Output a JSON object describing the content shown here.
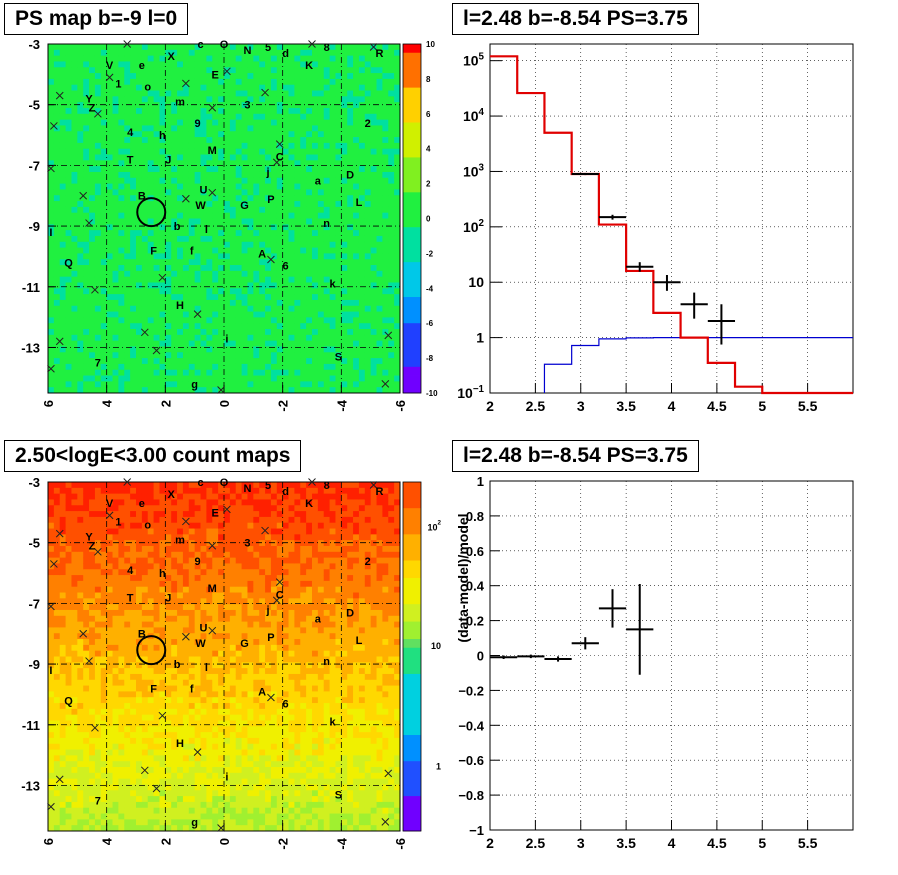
{
  "titles": {
    "ps_map": "PS map b=-9 l=0",
    "spectrum": "l=2.48 b=-8.54 PS=3.75",
    "count_map": "2.50<logE<3.00 count maps",
    "residual": "l=2.48 b=-8.54 PS=3.75"
  },
  "colors": {
    "model_red": "#e00000",
    "bg_blue": "#0000d0",
    "data_black": "#000000"
  },
  "chart_data": [
    {
      "id": "ps_map",
      "type": "heatmap",
      "title": "PS map b=-9 l=0",
      "xlim": [
        6,
        -6
      ],
      "ylim": [
        -14.5,
        -3
      ],
      "x_ticks": [
        "6",
        "4",
        "2",
        "0",
        "-2",
        "-4",
        "-6"
      ],
      "y_ticks": [
        "-3",
        "-5",
        "-7",
        "-9",
        "-11",
        "-13"
      ],
      "colorbar": {
        "min": -10,
        "max": 10,
        "ticks": [
          "10",
          "8",
          "6",
          "4",
          "2",
          "0",
          "-2",
          "-4",
          "-6",
          "-8",
          "-10"
        ]
      },
      "grid": true,
      "selected_source": {
        "l": 2.48,
        "b": -8.54
      }
    },
    {
      "id": "spectrum",
      "type": "line",
      "title": "l=2.48 b=-8.54 PS=3.75",
      "x_scale": "linear",
      "y_scale": "log",
      "xlim": [
        2,
        6
      ],
      "ylim": [
        0.1,
        200000
      ],
      "x_ticks": [
        "2",
        "2.5",
        "3",
        "3.5",
        "4",
        "4.5",
        "5",
        "5.5"
      ],
      "y_ticks": [
        {
          "base": "10",
          "exp": "5"
        },
        {
          "base": "10",
          "exp": "4"
        },
        {
          "base": "10",
          "exp": "3"
        },
        {
          "base": "10",
          "exp": "2"
        },
        {
          "base": "10",
          "exp": ""
        },
        {
          "base": "1",
          "exp": ""
        },
        {
          "base": "10",
          "exp": "−1"
        }
      ],
      "grid": true,
      "series": [
        {
          "bin_edges": [
            2.0,
            2.3,
            2.6,
            2.9,
            3.2,
            3.5,
            3.8,
            4.1,
            4.4,
            4.7,
            5.0,
            6.0
          ],
          "values": [
            120000,
            26000,
            5000,
            900,
            110,
            16,
            2.8,
            1.0,
            0.35,
            0.13,
            0.1
          ]
        },
        {
          "bin_edges": [
            2.6,
            2.9,
            3.2,
            3.5,
            3.8,
            6.0
          ],
          "values": [
            0.33,
            0.72,
            0.95,
            0.99,
            1.0
          ]
        },
        {
          "points": [
            {
              "x": 3.05,
              "y": 900,
              "xerr": 0.15,
              "ylo": 860,
              "yhi": 940
            },
            {
              "x": 3.35,
              "y": 150,
              "xerr": 0.15,
              "ylo": 135,
              "yhi": 165
            },
            {
              "x": 3.65,
              "y": 19,
              "xerr": 0.15,
              "ylo": 15.5,
              "yhi": 23
            },
            {
              "x": 3.95,
              "y": 10,
              "xerr": 0.15,
              "ylo": 7,
              "yhi": 13.5
            },
            {
              "x": 4.25,
              "y": 4,
              "xerr": 0.15,
              "ylo": 2.2,
              "yhi": 6.5
            },
            {
              "x": 4.55,
              "y": 2,
              "xerr": 0.15,
              "ylo": 0.75,
              "yhi": 4
            }
          ]
        }
      ]
    },
    {
      "id": "count_map",
      "type": "heatmap",
      "title": "2.50<logE<3.00 count maps",
      "xlim": [
        6,
        -6
      ],
      "ylim": [
        -14.5,
        -3
      ],
      "x_ticks": [
        "6",
        "4",
        "2",
        "0",
        "-2",
        "-4",
        "-6"
      ],
      "y_ticks": [
        "-3",
        "-5",
        "-7",
        "-9",
        "-11",
        "-13"
      ],
      "colorbar": {
        "scale": "log",
        "ticks": [
          {
            "base": "10",
            "exp": "2"
          },
          {
            "base": "10",
            "exp": ""
          },
          {
            "base": "1",
            "exp": ""
          }
        ]
      },
      "grid": true,
      "selected_source": {
        "l": 2.48,
        "b": -8.54
      }
    },
    {
      "id": "residual",
      "type": "scatter",
      "title": "l=2.48 b=-8.54 PS=3.75",
      "ylabel": "(data-model)/model",
      "xlim": [
        2,
        6
      ],
      "ylim": [
        -1,
        1
      ],
      "x_ticks": [
        "2",
        "2.5",
        "3",
        "3.5",
        "4",
        "4.5",
        "5",
        "5.5"
      ],
      "y_ticks": [
        "1",
        "0.8",
        "0.6",
        "0.4",
        "0.2",
        "0",
        "−0.2",
        "−0.4",
        "−0.6",
        "−0.8",
        "−1"
      ],
      "grid": true,
      "points": [
        {
          "x": 2.15,
          "y": -0.01,
          "xerr": 0.15,
          "yerr": 0.01
        },
        {
          "x": 2.45,
          "y": -0.005,
          "xerr": 0.15,
          "yerr": 0.01
        },
        {
          "x": 2.75,
          "y": -0.02,
          "xerr": 0.15,
          "yerr": 0.015
        },
        {
          "x": 3.05,
          "y": 0.07,
          "xerr": 0.15,
          "yerr": 0.035
        },
        {
          "x": 3.35,
          "y": 0.27,
          "xerr": 0.15,
          "yerr": 0.11
        },
        {
          "x": 3.65,
          "y": 0.15,
          "xerr": 0.15,
          "yerr": 0.26
        }
      ]
    }
  ],
  "source_labels": [
    {
      "t": "c",
      "l": 0.8,
      "b": -3.0
    },
    {
      "t": "O",
      "l": 0.0,
      "b": -3.0
    },
    {
      "t": "N",
      "l": -0.8,
      "b": -3.2
    },
    {
      "t": "5",
      "l": -1.5,
      "b": -3.1
    },
    {
      "t": "d",
      "l": -2.1,
      "b": -3.3
    },
    {
      "t": "8",
      "l": -3.5,
      "b": -3.1
    },
    {
      "t": "K",
      "l": -2.9,
      "b": -3.7
    },
    {
      "t": "R",
      "l": -5.3,
      "b": -3.3
    },
    {
      "t": "V",
      "l": 3.9,
      "b": -3.7
    },
    {
      "t": "e",
      "l": 2.8,
      "b": -3.7
    },
    {
      "t": "X",
      "l": 1.8,
      "b": -3.4
    },
    {
      "t": "E",
      "l": 0.3,
      "b": -4.0
    },
    {
      "t": "1",
      "l": 3.6,
      "b": -4.3
    },
    {
      "t": "o",
      "l": 2.6,
      "b": -4.4
    },
    {
      "t": "Y",
      "l": 4.6,
      "b": -4.8
    },
    {
      "t": "Z",
      "l": 4.5,
      "b": -5.1
    },
    {
      "t": "m",
      "l": 1.5,
      "b": -4.9
    },
    {
      "t": "3",
      "l": -0.8,
      "b": -5.0
    },
    {
      "t": "9",
      "l": 0.9,
      "b": -5.6
    },
    {
      "t": "2",
      "l": -4.9,
      "b": -5.6
    },
    {
      "t": "4",
      "l": 3.2,
      "b": -5.9
    },
    {
      "t": "h",
      "l": 2.1,
      "b": -6.0
    },
    {
      "t": "M",
      "l": 0.4,
      "b": -6.5
    },
    {
      "t": "C",
      "l": -1.9,
      "b": -6.7
    },
    {
      "t": "T",
      "l": 3.2,
      "b": -6.8
    },
    {
      "t": "J",
      "l": 1.9,
      "b": -6.8
    },
    {
      "t": "j",
      "l": -1.5,
      "b": -7.2
    },
    {
      "t": "a",
      "l": -3.2,
      "b": -7.5
    },
    {
      "t": "D",
      "l": -4.3,
      "b": -7.3
    },
    {
      "t": "U",
      "l": 0.7,
      "b": -7.8
    },
    {
      "t": "P",
      "l": -1.6,
      "b": -8.1
    },
    {
      "t": "G",
      "l": -0.7,
      "b": -8.3
    },
    {
      "t": "L",
      "l": -4.6,
      "b": -8.2
    },
    {
      "t": "B",
      "l": 2.8,
      "b": -8.0
    },
    {
      "t": "W",
      "l": 0.8,
      "b": -8.3
    },
    {
      "t": "b",
      "l": 1.6,
      "b": -9.0
    },
    {
      "t": "l",
      "l": 0.6,
      "b": -9.1
    },
    {
      "t": "n",
      "l": -3.5,
      "b": -8.9
    },
    {
      "t": "I",
      "l": 5.9,
      "b": -9.2
    },
    {
      "t": "F",
      "l": 2.4,
      "b": -9.8
    },
    {
      "t": "f",
      "l": 1.1,
      "b": -9.8
    },
    {
      "t": "A",
      "l": -1.3,
      "b": -9.9
    },
    {
      "t": "Q",
      "l": 5.3,
      "b": -10.2
    },
    {
      "t": "6",
      "l": -2.1,
      "b": -10.3
    },
    {
      "t": "k",
      "l": -3.7,
      "b": -10.9
    },
    {
      "t": "H",
      "l": 1.5,
      "b": -11.6
    },
    {
      "t": "i",
      "l": -0.1,
      "b": -12.7
    },
    {
      "t": "S",
      "l": -3.9,
      "b": -13.3
    },
    {
      "t": "7",
      "l": 4.3,
      "b": -13.5
    },
    {
      "t": "g",
      "l": 1.0,
      "b": -14.2
    }
  ],
  "x_markers": [
    {
      "l": 3.3,
      "b": -3.0
    },
    {
      "l": -3.0,
      "b": -3.0
    },
    {
      "l": -5.1,
      "b": -3.1
    },
    {
      "l": 3.9,
      "b": -4.1
    },
    {
      "l": 1.3,
      "b": -4.3
    },
    {
      "l": -0.1,
      "b": -3.9
    },
    {
      "l": 5.6,
      "b": -4.7
    },
    {
      "l": -1.4,
      "b": -4.6
    },
    {
      "l": 0.4,
      "b": -5.1
    },
    {
      "l": 4.3,
      "b": -5.3
    },
    {
      "l": 5.8,
      "b": -5.7
    },
    {
      "l": -1.9,
      "b": -6.3
    },
    {
      "l": -1.8,
      "b": -6.9
    },
    {
      "l": 5.9,
      "b": -7.1
    },
    {
      "l": 1.3,
      "b": -8.1
    },
    {
      "l": 0.4,
      "b": -7.9
    },
    {
      "l": 4.8,
      "b": -8.0
    },
    {
      "l": 4.6,
      "b": -8.9
    },
    {
      "l": -1.6,
      "b": -10.1
    },
    {
      "l": 2.1,
      "b": -10.7
    },
    {
      "l": 4.4,
      "b": -11.1
    },
    {
      "l": 0.9,
      "b": -11.9
    },
    {
      "l": 2.7,
      "b": -12.5
    },
    {
      "l": 5.6,
      "b": -12.8
    },
    {
      "l": -5.6,
      "b": -12.6
    },
    {
      "l": 2.3,
      "b": -13.1
    },
    {
      "l": 5.9,
      "b": -13.7
    },
    {
      "l": -5.5,
      "b": -14.2
    },
    {
      "l": 0.1,
      "b": -14.4
    }
  ]
}
